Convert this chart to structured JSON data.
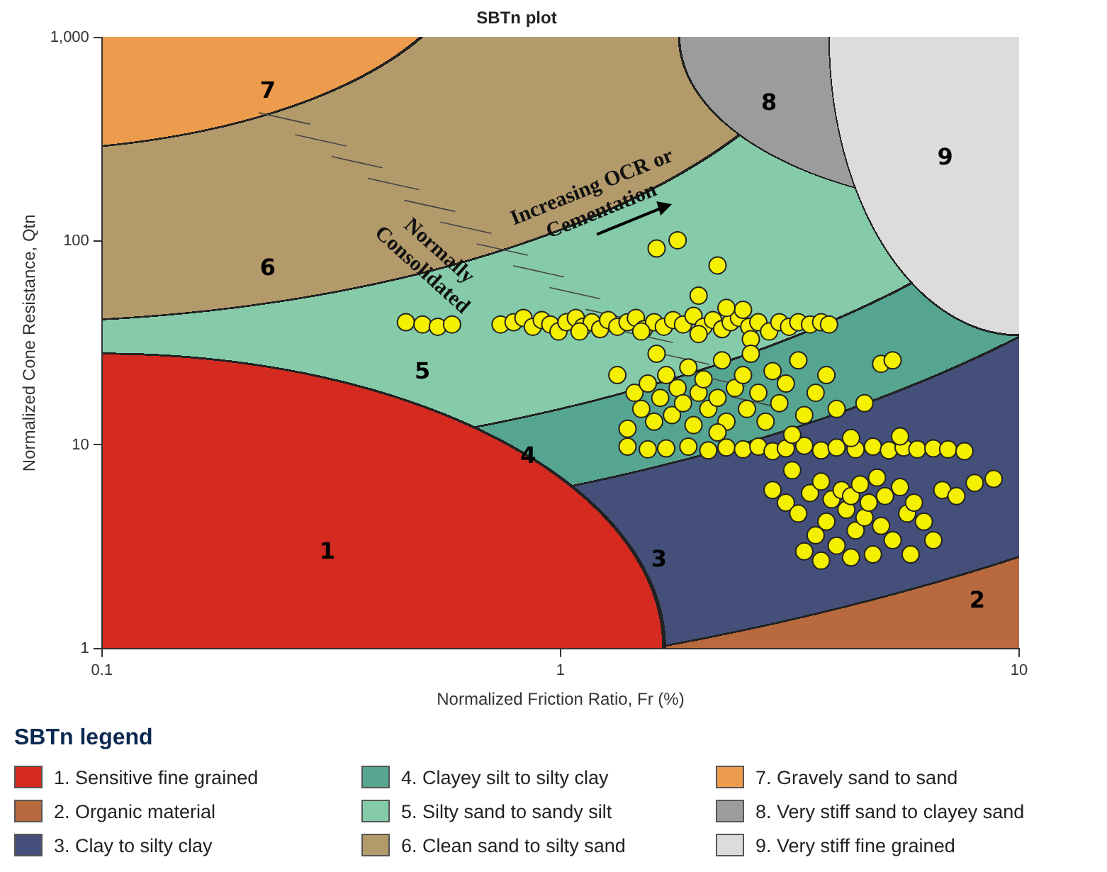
{
  "chart_data": {
    "type": "scatter",
    "title": "SBTn plot",
    "xlabel": "Normalized Friction Ratio, Fr (%)",
    "ylabel": "Normalized Cone Resistance, Qtn",
    "legend_title": "SBTn legend",
    "log": "xy",
    "xlim": [
      0.1,
      10
    ],
    "ylim": [
      1,
      1000
    ],
    "xticks": [
      0.1,
      1,
      10
    ],
    "yticks": [
      1,
      10,
      100,
      {
        "value": 1000,
        "label": "1,000"
      }
    ],
    "marker": "circle",
    "color": "#f5f000",
    "x": [
      0.46,
      0.5,
      0.54,
      0.58,
      0.74,
      0.79,
      0.83,
      0.87,
      0.91,
      0.95,
      0.99,
      1.03,
      1.08,
      1.12,
      1.17,
      1.22,
      1.27,
      1.33,
      1.4,
      1.46,
      1.52,
      1.6,
      1.68,
      1.76,
      1.85,
      1.95,
      2.05,
      2.15,
      2.25,
      2.35,
      2.45,
      2.58,
      2.7,
      2.85,
      3.0,
      3.15,
      3.3,
      3.5,
      3.7,
      3.85,
      1.1,
      1.5,
      2.0,
      1.62,
      1.8,
      2.2,
      2.0,
      2.5,
      2.3,
      1.33,
      1.62,
      2.6,
      1.45,
      1.5,
      1.55,
      1.6,
      1.65,
      1.7,
      1.75,
      1.8,
      1.85,
      1.9,
      1.95,
      2.0,
      2.05,
      2.1,
      2.2,
      2.25,
      2.3,
      2.4,
      2.5,
      2.55,
      2.6,
      2.7,
      2.8,
      2.9,
      3.0,
      3.1,
      3.3,
      3.4,
      3.6,
      3.8,
      4.6,
      5.0,
      5.3,
      4.0,
      1.4,
      1.4,
      1.55,
      1.7,
      1.9,
      2.1,
      2.3,
      2.5,
      2.7,
      2.9,
      3.1,
      3.4,
      3.7,
      4.0,
      4.4,
      4.8,
      5.2,
      5.6,
      6.0,
      6.5,
      7.0,
      7.6,
      3.2,
      4.3,
      5.5,
      2.2,
      2.9,
      3.1,
      3.3,
      3.5,
      3.6,
      3.7,
      3.8,
      3.9,
      4.0,
      4.1,
      4.2,
      4.3,
      4.4,
      4.5,
      4.6,
      4.7,
      4.8,
      4.9,
      5.0,
      5.1,
      5.3,
      5.5,
      5.7,
      5.9,
      6.2,
      6.5,
      6.8,
      3.4,
      3.7,
      4.3,
      8.0,
      8.8,
      5.8,
      3.2,
      7.3
    ],
    "values": [
      40,
      39,
      38,
      39,
      39,
      40,
      42,
      38,
      41,
      39,
      36,
      40,
      42,
      38,
      40,
      37,
      41,
      38,
      40,
      42,
      37,
      40,
      38,
      41,
      39,
      43,
      38,
      41,
      37,
      40,
      42,
      38,
      40,
      36,
      40,
      38,
      40,
      39,
      40,
      39,
      36,
      36,
      35,
      92,
      101,
      76,
      54,
      46,
      47,
      22,
      28,
      33,
      18,
      15,
      20,
      13,
      17,
      22,
      14,
      19,
      16,
      24,
      12.5,
      18,
      21,
      15,
      17,
      26,
      13,
      19,
      22,
      15,
      28,
      18,
      13,
      23,
      16,
      20,
      26,
      14,
      18,
      22,
      16,
      25,
      26,
      15,
      12,
      9.8,
      9.5,
      9.6,
      9.8,
      9.4,
      9.7,
      9.5,
      9.8,
      9.3,
      9.6,
      9.9,
      9.4,
      9.7,
      9.5,
      9.8,
      9.4,
      9.7,
      9.5,
      9.6,
      9.5,
      9.3,
      11.2,
      10.8,
      11,
      11.5,
      6,
      5.2,
      4.6,
      5.8,
      3.6,
      6.6,
      4.2,
      5.4,
      3.2,
      6.0,
      4.8,
      5.6,
      3.8,
      6.4,
      4.4,
      5.2,
      2.9,
      6.9,
      4.0,
      5.6,
      3.4,
      6.2,
      4.6,
      5.2,
      4.2,
      3.4,
      6.0,
      3.0,
      2.7,
      2.8,
      6.5,
      6.8,
      2.9,
      7.5,
      5.6
    ],
    "annotations": [
      "1. Sensitive fine grained",
      "2. Organic material",
      "3. Clay to silty clay",
      "4. Clayey silt to silty clay",
      "5. Silty sand to sandy silt",
      "6. Clean sand to silty sand",
      "7. Gravely sand to sand",
      "8. Very stiff sand to clayey sand",
      "9. Very stiff fine grained",
      "1",
      "2",
      "3",
      "4",
      "5",
      "6",
      "7",
      "8",
      "9",
      "Increasing OCR or Cementation",
      "Normally Consolidated"
    ]
  }
}
